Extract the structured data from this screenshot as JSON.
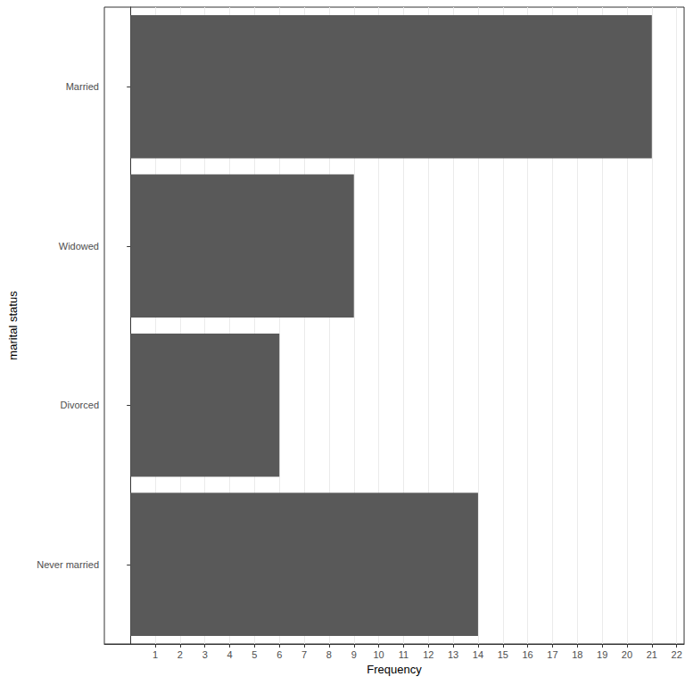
{
  "chart_data": {
    "type": "bar",
    "orientation": "horizontal",
    "x_label": "Frequency",
    "y_label": "marital status",
    "categories": [
      "Married",
      "Widowed",
      "Divorced",
      "Never married"
    ],
    "values": [
      21,
      9,
      6,
      14
    ],
    "color": "#595959",
    "xlim": [
      -1.05,
      22.3
    ],
    "xticks": [
      1,
      2,
      3,
      4,
      5,
      6,
      7,
      8,
      9,
      10,
      11,
      12,
      13,
      14,
      15,
      16,
      17,
      18,
      19,
      20,
      21,
      22
    ],
    "grid": true
  }
}
